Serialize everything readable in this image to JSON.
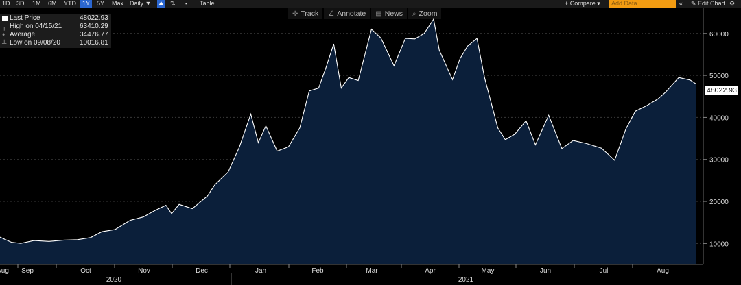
{
  "toolbar": {
    "ranges": [
      "1D",
      "3D",
      "1M",
      "6M",
      "YTD",
      "1Y",
      "5Y",
      "Max"
    ],
    "active_range": "1Y",
    "frequency": "Daily ▼",
    "chart_icon": "area-chart-icon",
    "table_label": "Table",
    "compare_label": "+ Compare ▾",
    "add_data_placeholder": "Add Data",
    "edit_chart_label": "✎ Edit Chart",
    "collapse_icon": "double-chevron-left-icon",
    "settings_icon": "gear-icon"
  },
  "chart_tools": [
    {
      "icon": "crosshair-icon",
      "glyph": "✛",
      "label": "Track"
    },
    {
      "icon": "pencil-icon",
      "glyph": "∠",
      "label": "Annotate"
    },
    {
      "icon": "news-icon",
      "glyph": "▤",
      "label": "News"
    },
    {
      "icon": "magnifier-icon",
      "glyph": "🔍",
      "label": "Zoom"
    }
  ],
  "legend": {
    "last_label": "Last Price",
    "last_value": "48022.93",
    "high_label": "High on 04/15/21",
    "high_value": "63410.29",
    "avg_label": "Average",
    "avg_value": "34476.77",
    "low_label": "Low on 09/08/20",
    "low_value": "10016.81"
  },
  "price_tag": "48022.93",
  "colors": {
    "area_fill": "#0b1f3a",
    "line": "#ffffff",
    "background": "#000000",
    "active": "#2a66d0",
    "add_data": "#f39c12"
  },
  "chart_data": {
    "type": "area",
    "yticks": [
      10000,
      20000,
      30000,
      40000,
      50000,
      60000
    ],
    "ylim": [
      5000,
      66000
    ],
    "month_labels": [
      "Aug",
      "Sep",
      "Oct",
      "Nov",
      "Dec",
      "Jan",
      "Feb",
      "Mar",
      "Apr",
      "May",
      "Jun",
      "Jul",
      "Aug"
    ],
    "year_labels": [
      "2020",
      "2021"
    ],
    "series": [
      {
        "points": [
          [
            "2020-08-28",
            11500
          ],
          [
            "2020-09-03",
            10300
          ],
          [
            "2020-09-08",
            10017
          ],
          [
            "2020-09-15",
            10700
          ],
          [
            "2020-09-23",
            10500
          ],
          [
            "2020-10-01",
            10800
          ],
          [
            "2020-10-08",
            10900
          ],
          [
            "2020-10-15",
            11400
          ],
          [
            "2020-10-21",
            12800
          ],
          [
            "2020-10-28",
            13300
          ],
          [
            "2020-11-05",
            15500
          ],
          [
            "2020-11-12",
            16300
          ],
          [
            "2020-11-18",
            17800
          ],
          [
            "2020-11-24",
            19100
          ],
          [
            "2020-11-27",
            17100
          ],
          [
            "2020-12-01",
            19300
          ],
          [
            "2020-12-08",
            18300
          ],
          [
            "2020-12-16",
            21300
          ],
          [
            "2020-12-20",
            24000
          ],
          [
            "2020-12-27",
            27000
          ],
          [
            "2021-01-02",
            33000
          ],
          [
            "2021-01-08",
            40800
          ],
          [
            "2021-01-12",
            34000
          ],
          [
            "2021-01-16",
            38000
          ],
          [
            "2021-01-22",
            32000
          ],
          [
            "2021-01-28",
            33000
          ],
          [
            "2021-02-03",
            37500
          ],
          [
            "2021-02-08",
            46300
          ],
          [
            "2021-02-13",
            47000
          ],
          [
            "2021-02-17",
            52000
          ],
          [
            "2021-02-21",
            57500
          ],
          [
            "2021-02-25",
            47000
          ],
          [
            "2021-03-01",
            49500
          ],
          [
            "2021-03-06",
            48800
          ],
          [
            "2021-03-13",
            61000
          ],
          [
            "2021-03-18",
            58900
          ],
          [
            "2021-03-25",
            52300
          ],
          [
            "2021-03-31",
            58800
          ],
          [
            "2021-04-05",
            58700
          ],
          [
            "2021-04-10",
            60000
          ],
          [
            "2021-04-15",
            63410
          ],
          [
            "2021-04-18",
            56000
          ],
          [
            "2021-04-25",
            49000
          ],
          [
            "2021-04-29",
            54000
          ],
          [
            "2021-05-03",
            57000
          ],
          [
            "2021-05-08",
            58800
          ],
          [
            "2021-05-12",
            49500
          ],
          [
            "2021-05-19",
            37500
          ],
          [
            "2021-05-23",
            34700
          ],
          [
            "2021-05-28",
            36000
          ],
          [
            "2021-06-03",
            39200
          ],
          [
            "2021-06-08",
            33500
          ],
          [
            "2021-06-15",
            40500
          ],
          [
            "2021-06-22",
            32600
          ],
          [
            "2021-06-28",
            34500
          ],
          [
            "2021-07-05",
            33800
          ],
          [
            "2021-07-13",
            32700
          ],
          [
            "2021-07-20",
            29800
          ],
          [
            "2021-07-26",
            37300
          ],
          [
            "2021-07-31",
            41500
          ],
          [
            "2021-08-06",
            42800
          ],
          [
            "2021-08-12",
            44400
          ],
          [
            "2021-08-16",
            46000
          ],
          [
            "2021-08-23",
            49500
          ],
          [
            "2021-08-29",
            48900
          ],
          [
            "2021-09-01",
            48022
          ]
        ]
      }
    ]
  }
}
